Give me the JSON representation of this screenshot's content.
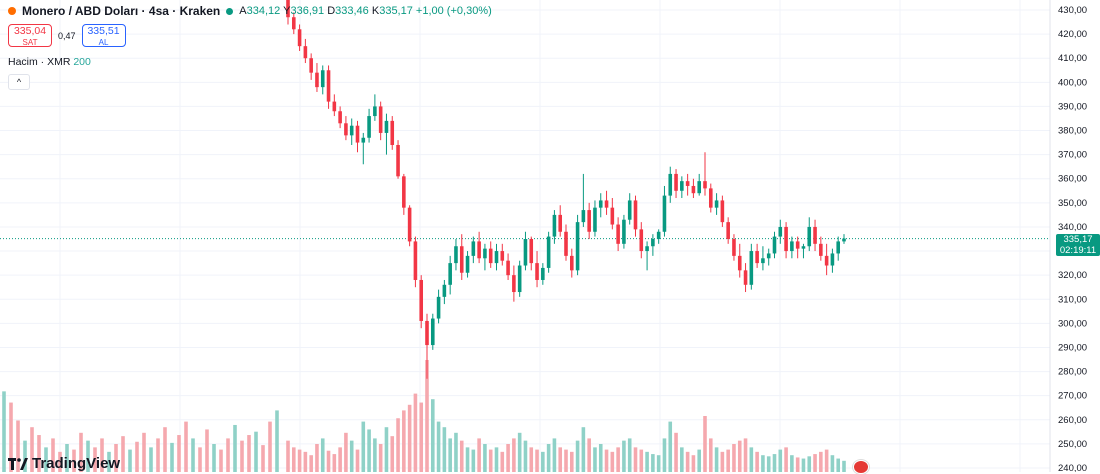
{
  "legend": {
    "symbol": "Monero / ABD Doları · 4sa · Kraken",
    "open_label": "A",
    "open": "334,12",
    "high_label": "Y",
    "high": "336,91",
    "low_label": "D",
    "low": "333,46",
    "close_label": "K",
    "close": "335,17",
    "change": "+1,00 (+0,30%)"
  },
  "trade": {
    "sell_price": "335,04",
    "sell_label": "SAT",
    "spread": "0,47",
    "buy_price": "335,51",
    "buy_label": "AL"
  },
  "volume": {
    "label": "Hacim · XMR",
    "length": "200"
  },
  "collapse_icon": "^",
  "brand": "TradingView",
  "price_tag": {
    "price": "335,17",
    "countdown": "02:19:11"
  },
  "colors": {
    "up": "#089981",
    "down": "#f23645",
    "vol_up": "#8fd1c7",
    "vol_down": "#f5a8ae"
  },
  "chart_data": {
    "type": "candlestick",
    "y_axis": {
      "min": 240,
      "max": 430,
      "step": 10,
      "tick_labels": [
        "430,00",
        "420,00",
        "410,00",
        "400,00",
        "390,00",
        "380,00",
        "370,00",
        "360,00",
        "350,00",
        "340,00",
        "330,00",
        "320,00",
        "310,00",
        "300,00",
        "290,00",
        "280,00",
        "270,00",
        "260,00",
        "250,00",
        "240,00"
      ]
    },
    "last_price": 335.17,
    "grid": true,
    "candles": [
      [
        435,
        437,
        424,
        427
      ],
      [
        427,
        429,
        420,
        422
      ],
      [
        422,
        424,
        413,
        415
      ],
      [
        415,
        418,
        408,
        410
      ],
      [
        410,
        412,
        401,
        404
      ],
      [
        404,
        408,
        396,
        398
      ],
      [
        398,
        407,
        395,
        405
      ],
      [
        405,
        407,
        389,
        392
      ],
      [
        392,
        395,
        386,
        388
      ],
      [
        388,
        390,
        381,
        383
      ],
      [
        383,
        386,
        376,
        378
      ],
      [
        378,
        385,
        374,
        382
      ],
      [
        382,
        384,
        371,
        375
      ],
      [
        375,
        379,
        366,
        377
      ],
      [
        377,
        389,
        375,
        386
      ],
      [
        386,
        395,
        384,
        390
      ],
      [
        390,
        392,
        376,
        379
      ],
      [
        379,
        387,
        370,
        384
      ],
      [
        384,
        386,
        372,
        374
      ],
      [
        374,
        376,
        360,
        361
      ],
      [
        361,
        362,
        345,
        348
      ],
      [
        348,
        349,
        332,
        334
      ],
      [
        334,
        336,
        315,
        318
      ],
      [
        318,
        320,
        298,
        301
      ],
      [
        301,
        304,
        277,
        291
      ],
      [
        291,
        304,
        289,
        302
      ],
      [
        302,
        314,
        300,
        311
      ],
      [
        311,
        318,
        308,
        316
      ],
      [
        316,
        328,
        312,
        325
      ],
      [
        325,
        335,
        322,
        332
      ],
      [
        332,
        337,
        318,
        321
      ],
      [
        321,
        330,
        319,
        328
      ],
      [
        328,
        336,
        325,
        334
      ],
      [
        334,
        338,
        325,
        327
      ],
      [
        327,
        333,
        322,
        331
      ],
      [
        331,
        334,
        323,
        325
      ],
      [
        325,
        333,
        322,
        330
      ],
      [
        330,
        333,
        324,
        326
      ],
      [
        326,
        329,
        318,
        320
      ],
      [
        320,
        324,
        309,
        313
      ],
      [
        313,
        326,
        311,
        324
      ],
      [
        324,
        338,
        322,
        335
      ],
      [
        335,
        336,
        322,
        325
      ],
      [
        325,
        330,
        315,
        318
      ],
      [
        318,
        325,
        316,
        323
      ],
      [
        323,
        338,
        321,
        336
      ],
      [
        336,
        347,
        333,
        345
      ],
      [
        345,
        349,
        336,
        338
      ],
      [
        338,
        341,
        326,
        328
      ],
      [
        328,
        331,
        319,
        322
      ],
      [
        322,
        345,
        320,
        342
      ],
      [
        342,
        362,
        340,
        347
      ],
      [
        347,
        350,
        335,
        338
      ],
      [
        338,
        351,
        336,
        348
      ],
      [
        348,
        354,
        344,
        351
      ],
      [
        351,
        355,
        345,
        348
      ],
      [
        348,
        352,
        339,
        341
      ],
      [
        341,
        344,
        330,
        333
      ],
      [
        333,
        345,
        331,
        343
      ],
      [
        343,
        354,
        341,
        351
      ],
      [
        351,
        353,
        336,
        339
      ],
      [
        339,
        342,
        327,
        330
      ],
      [
        330,
        334,
        322,
        332
      ],
      [
        332,
        337,
        328,
        335
      ],
      [
        335,
        339,
        333,
        338
      ],
      [
        338,
        357,
        336,
        353
      ],
      [
        353,
        365,
        350,
        362
      ],
      [
        362,
        364,
        352,
        355
      ],
      [
        355,
        361,
        352,
        359
      ],
      [
        359,
        362,
        353,
        357
      ],
      [
        357,
        360,
        352,
        354
      ],
      [
        354,
        362,
        353,
        359
      ],
      [
        359,
        371,
        353,
        356
      ],
      [
        356,
        358,
        346,
        348
      ],
      [
        348,
        354,
        345,
        351
      ],
      [
        351,
        353,
        340,
        342
      ],
      [
        342,
        344,
        333,
        335
      ],
      [
        335,
        337,
        326,
        328
      ],
      [
        328,
        333,
        319,
        322
      ],
      [
        322,
        325,
        313,
        316
      ],
      [
        316,
        333,
        314,
        330
      ],
      [
        330,
        333,
        323,
        325
      ],
      [
        325,
        332,
        322,
        327
      ],
      [
        327,
        331,
        324,
        329
      ],
      [
        329,
        338,
        327,
        336
      ],
      [
        336,
        343,
        333,
        340
      ],
      [
        340,
        342,
        327,
        330
      ],
      [
        330,
        336,
        327,
        334
      ],
      [
        334,
        336,
        327,
        331
      ],
      [
        331,
        333,
        327,
        332
      ],
      [
        332,
        344,
        330,
        340
      ],
      [
        340,
        343,
        330,
        333
      ],
      [
        333,
        336,
        326,
        328
      ],
      [
        328,
        333,
        320,
        324
      ],
      [
        324,
        331,
        321,
        329
      ],
      [
        329,
        336,
        326,
        334
      ],
      [
        334,
        337,
        333,
        335.17
      ]
    ],
    "volume": [
      0.28,
      0.22,
      0.2,
      0.18,
      0.15,
      0.25,
      0.3,
      0.19,
      0.16,
      0.22,
      0.35,
      0.28,
      0.2,
      0.45,
      0.38,
      0.3,
      0.25,
      0.4,
      0.32,
      0.48,
      0.55,
      0.6,
      0.7,
      0.62,
      1.0,
      0.65,
      0.45,
      0.4,
      0.3,
      0.35,
      0.28,
      0.22,
      0.2,
      0.3,
      0.25,
      0.2,
      0.22,
      0.18,
      0.25,
      0.3,
      0.35,
      0.28,
      0.22,
      0.2,
      0.18,
      0.25,
      0.3,
      0.22,
      0.2,
      0.18,
      0.28,
      0.4,
      0.3,
      0.22,
      0.25,
      0.2,
      0.18,
      0.22,
      0.28,
      0.3,
      0.22,
      0.2,
      0.18,
      0.16,
      0.15,
      0.3,
      0.45,
      0.35,
      0.22,
      0.18,
      0.15,
      0.2,
      0.5,
      0.3,
      0.22,
      0.18,
      0.2,
      0.25,
      0.28,
      0.3,
      0.22,
      0.18,
      0.15,
      0.14,
      0.16,
      0.2,
      0.22,
      0.15,
      0.13,
      0.12,
      0.14,
      0.16,
      0.18,
      0.2,
      0.15,
      0.12,
      0.1
    ]
  }
}
